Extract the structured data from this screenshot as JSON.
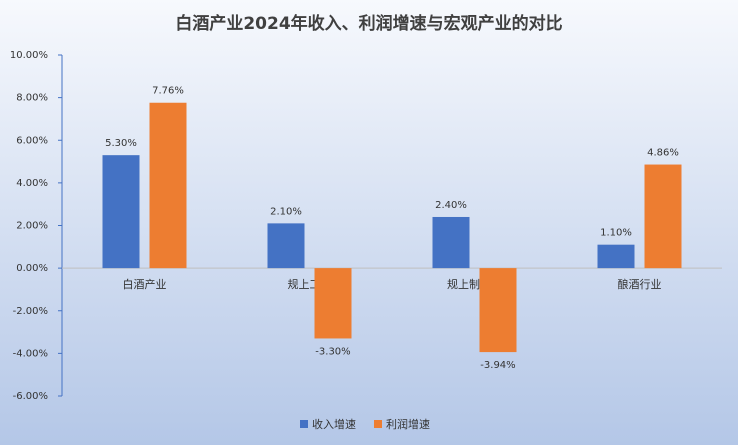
{
  "chart_data": {
    "type": "bar",
    "title": "白酒产业2024年收入、利润增速与宏观产业的对比",
    "categories": [
      "白酒产业",
      "规上工业",
      "规上制造业",
      "酿酒行业"
    ],
    "series": [
      {
        "name": "收入增速",
        "color": "#4472c4",
        "values": [
          5.3,
          2.1,
          2.4,
          1.1
        ],
        "value_labels": [
          "5.30%",
          "2.10%",
          "2.40%",
          "1.10%"
        ]
      },
      {
        "name": "利润增速",
        "color": "#ed7d31",
        "values": [
          7.76,
          -3.3,
          -3.94,
          4.86
        ],
        "value_labels": [
          "7.76%",
          "-3.30%",
          "-3.94%",
          "4.86%"
        ]
      }
    ],
    "ylim": [
      -6,
      10
    ],
    "yticks": [
      {
        "value": -6,
        "label": "-6.00%"
      },
      {
        "value": -4,
        "label": "-4.00%"
      },
      {
        "value": -2,
        "label": "-2.00%"
      },
      {
        "value": 0,
        "label": "0.00%"
      },
      {
        "value": 2,
        "label": "2.00%"
      },
      {
        "value": 4,
        "label": "4.00%"
      },
      {
        "value": 6,
        "label": "6.00%"
      },
      {
        "value": 8,
        "label": "8.00%"
      },
      {
        "value": 10,
        "label": "10.00%"
      }
    ],
    "legend": "bottom"
  }
}
